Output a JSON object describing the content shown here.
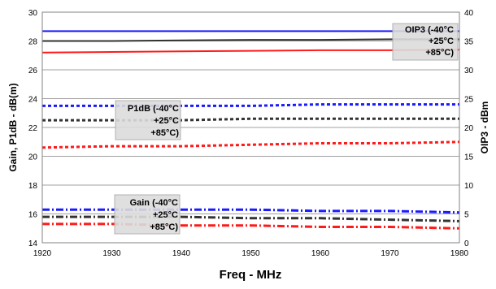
{
  "chart_data": {
    "type": "line",
    "title": "",
    "xlabel": "Freq - MHz",
    "ylabel_left": "Gain, P1dB - dB(m)",
    "ylabel_right": "OIP3 - dBm",
    "xlim": [
      1920,
      1980
    ],
    "ylim_left": [
      14,
      30
    ],
    "ylim_right": [
      0,
      40
    ],
    "x_ticks": [
      1920,
      1930,
      1940,
      1950,
      1960,
      1970,
      1980
    ],
    "y_left_ticks": [
      14,
      16,
      18,
      20,
      22,
      24,
      26,
      28,
      30
    ],
    "y_right_ticks": [
      0,
      5,
      10,
      15,
      20,
      25,
      30,
      35,
      40
    ],
    "grid": "horizontal",
    "x": [
      1920,
      1930,
      1940,
      1950,
      1960,
      1970,
      1980
    ],
    "series": [
      {
        "group": "oip3",
        "axis": "right",
        "style": "solid",
        "color": "#1a1aff",
        "values": [
          36.7,
          36.7,
          36.7,
          36.7,
          36.7,
          36.7,
          36.7
        ]
      },
      {
        "group": "oip3",
        "axis": "right",
        "style": "solid",
        "color": "#333333",
        "values": [
          35.0,
          35.0,
          35.1,
          35.2,
          35.2,
          35.3,
          35.3
        ]
      },
      {
        "group": "oip3",
        "axis": "right",
        "style": "solid",
        "color": "#ff1a1a",
        "values": [
          33.0,
          33.1,
          33.2,
          33.3,
          33.4,
          33.4,
          33.5
        ]
      },
      {
        "group": "p1db",
        "axis": "left",
        "style": "dashed",
        "color": "#1a1aff",
        "values": [
          23.5,
          23.5,
          23.5,
          23.5,
          23.6,
          23.6,
          23.6
        ]
      },
      {
        "group": "p1db",
        "axis": "left",
        "style": "dashed",
        "color": "#333333",
        "values": [
          22.5,
          22.5,
          22.5,
          22.6,
          22.6,
          22.6,
          22.6
        ]
      },
      {
        "group": "p1db",
        "axis": "left",
        "style": "dashed",
        "color": "#ff1a1a",
        "values": [
          20.6,
          20.7,
          20.7,
          20.8,
          20.9,
          20.9,
          21.0
        ]
      },
      {
        "group": "gain",
        "axis": "left",
        "style": "dashdot",
        "color": "#1a1aff",
        "values": [
          16.3,
          16.3,
          16.3,
          16.3,
          16.2,
          16.2,
          16.1
        ]
      },
      {
        "group": "gain",
        "axis": "left",
        "style": "dashdot",
        "color": "#333333",
        "values": [
          15.8,
          15.8,
          15.8,
          15.7,
          15.7,
          15.6,
          15.5
        ]
      },
      {
        "group": "gain",
        "axis": "left",
        "style": "dashdot",
        "color": "#ff1a1a",
        "values": [
          15.3,
          15.3,
          15.2,
          15.2,
          15.1,
          15.1,
          15.0
        ]
      }
    ],
    "legends": [
      {
        "id": "oip3",
        "lines": [
          "OIP3 (-40°C",
          "+25°C",
          "+85°C)"
        ]
      },
      {
        "id": "p1db",
        "lines": [
          "P1dB (-40°C",
          "+25°C",
          "+85°C)"
        ]
      },
      {
        "id": "gain",
        "lines": [
          "Gain (-40°C",
          "+25°C",
          "+85°C)"
        ]
      }
    ]
  }
}
